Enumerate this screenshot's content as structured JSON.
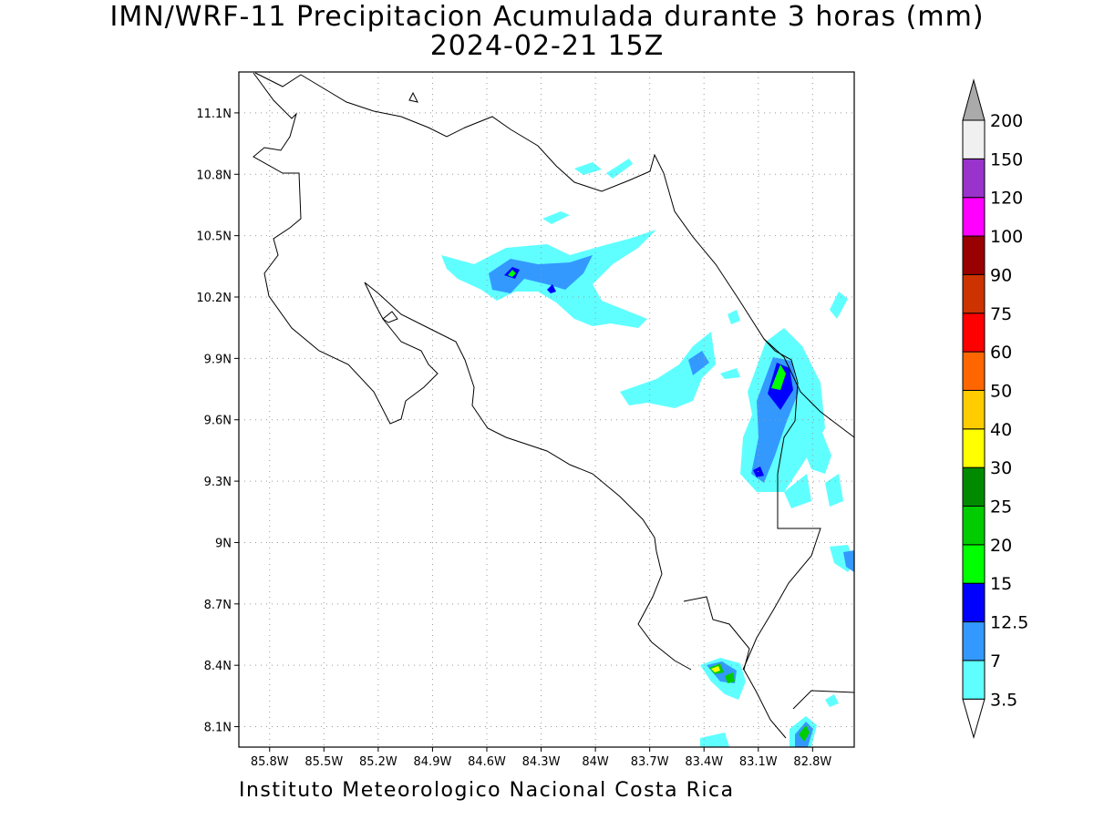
{
  "title": "IMN/WRF-11 Precipitacion Acumulada durante 3 horas (mm)",
  "subtitle": "2024-02-21 15Z",
  "footer": "Instituto Meteorologico Nacional Costa Rica",
  "map": {
    "lon_labels": [
      "85.8W",
      "85.5W",
      "85.2W",
      "84.9W",
      "84.6W",
      "84.3W",
      "84W",
      "83.7W",
      "83.4W",
      "83.1W",
      "82.8W"
    ],
    "lat_labels": [
      "11.1N",
      "10.8N",
      "10.5N",
      "10.2N",
      "9.9N",
      "9.6N",
      "9.3N",
      "9N",
      "8.7N",
      "8.4N",
      "8.1N"
    ],
    "lon_range": [
      -85.97,
      -82.57
    ],
    "lat_range": [
      8.0,
      11.3
    ],
    "grid": true
  },
  "colorbar": {
    "levels": [
      "3.5",
      "7",
      "12.5",
      "15",
      "20",
      "25",
      "30",
      "40",
      "50",
      "60",
      "75",
      "90",
      "100",
      "120",
      "150",
      "200"
    ],
    "colors": [
      "#ffffff",
      "#5fffff",
      "#3399ff",
      "#0000ff",
      "#00ff00",
      "#00cc00",
      "#008a00",
      "#ffff00",
      "#ffcc00",
      "#ff6600",
      "#ff0000",
      "#cc3300",
      "#990000",
      "#ff00ff",
      "#9933cc",
      "#f0f0f0",
      "#aaaaaa"
    ]
  }
}
